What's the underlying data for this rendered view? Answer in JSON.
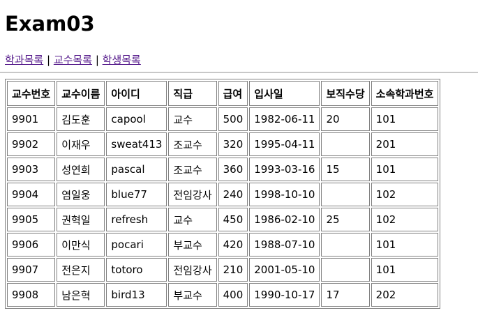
{
  "page": {
    "title": "Exam03"
  },
  "nav": {
    "links": [
      "학과목록",
      "교수목록",
      "학생목록"
    ],
    "separator": "|",
    "link_color": "#551a8b"
  },
  "table": {
    "headers": [
      "교수번호",
      "교수이름",
      "아이디",
      "직급",
      "급여",
      "입사일",
      "보직수당",
      "소속학과번호"
    ],
    "rows": [
      [
        "9901",
        "김도훈",
        "capool",
        "교수",
        "500",
        "1982-06-11",
        "20",
        "101"
      ],
      [
        "9902",
        "이재우",
        "sweat413",
        "조교수",
        "320",
        "1995-04-11",
        "",
        "201"
      ],
      [
        "9903",
        "성연희",
        "pascal",
        "조교수",
        "360",
        "1993-03-16",
        "15",
        "101"
      ],
      [
        "9904",
        "염일웅",
        "blue77",
        "전임강사",
        "240",
        "1998-10-10",
        "",
        "102"
      ],
      [
        "9905",
        "권혁일",
        "refresh",
        "교수",
        "450",
        "1986-02-10",
        "25",
        "102"
      ],
      [
        "9906",
        "이만식",
        "pocari",
        "부교수",
        "420",
        "1988-07-10",
        "",
        "101"
      ],
      [
        "9907",
        "전은지",
        "totoro",
        "전임강사",
        "210",
        "2001-05-10",
        "",
        "101"
      ],
      [
        "9908",
        "남은혁",
        "bird13",
        "부교수",
        "400",
        "1990-10-17",
        "17",
        "202"
      ]
    ]
  }
}
